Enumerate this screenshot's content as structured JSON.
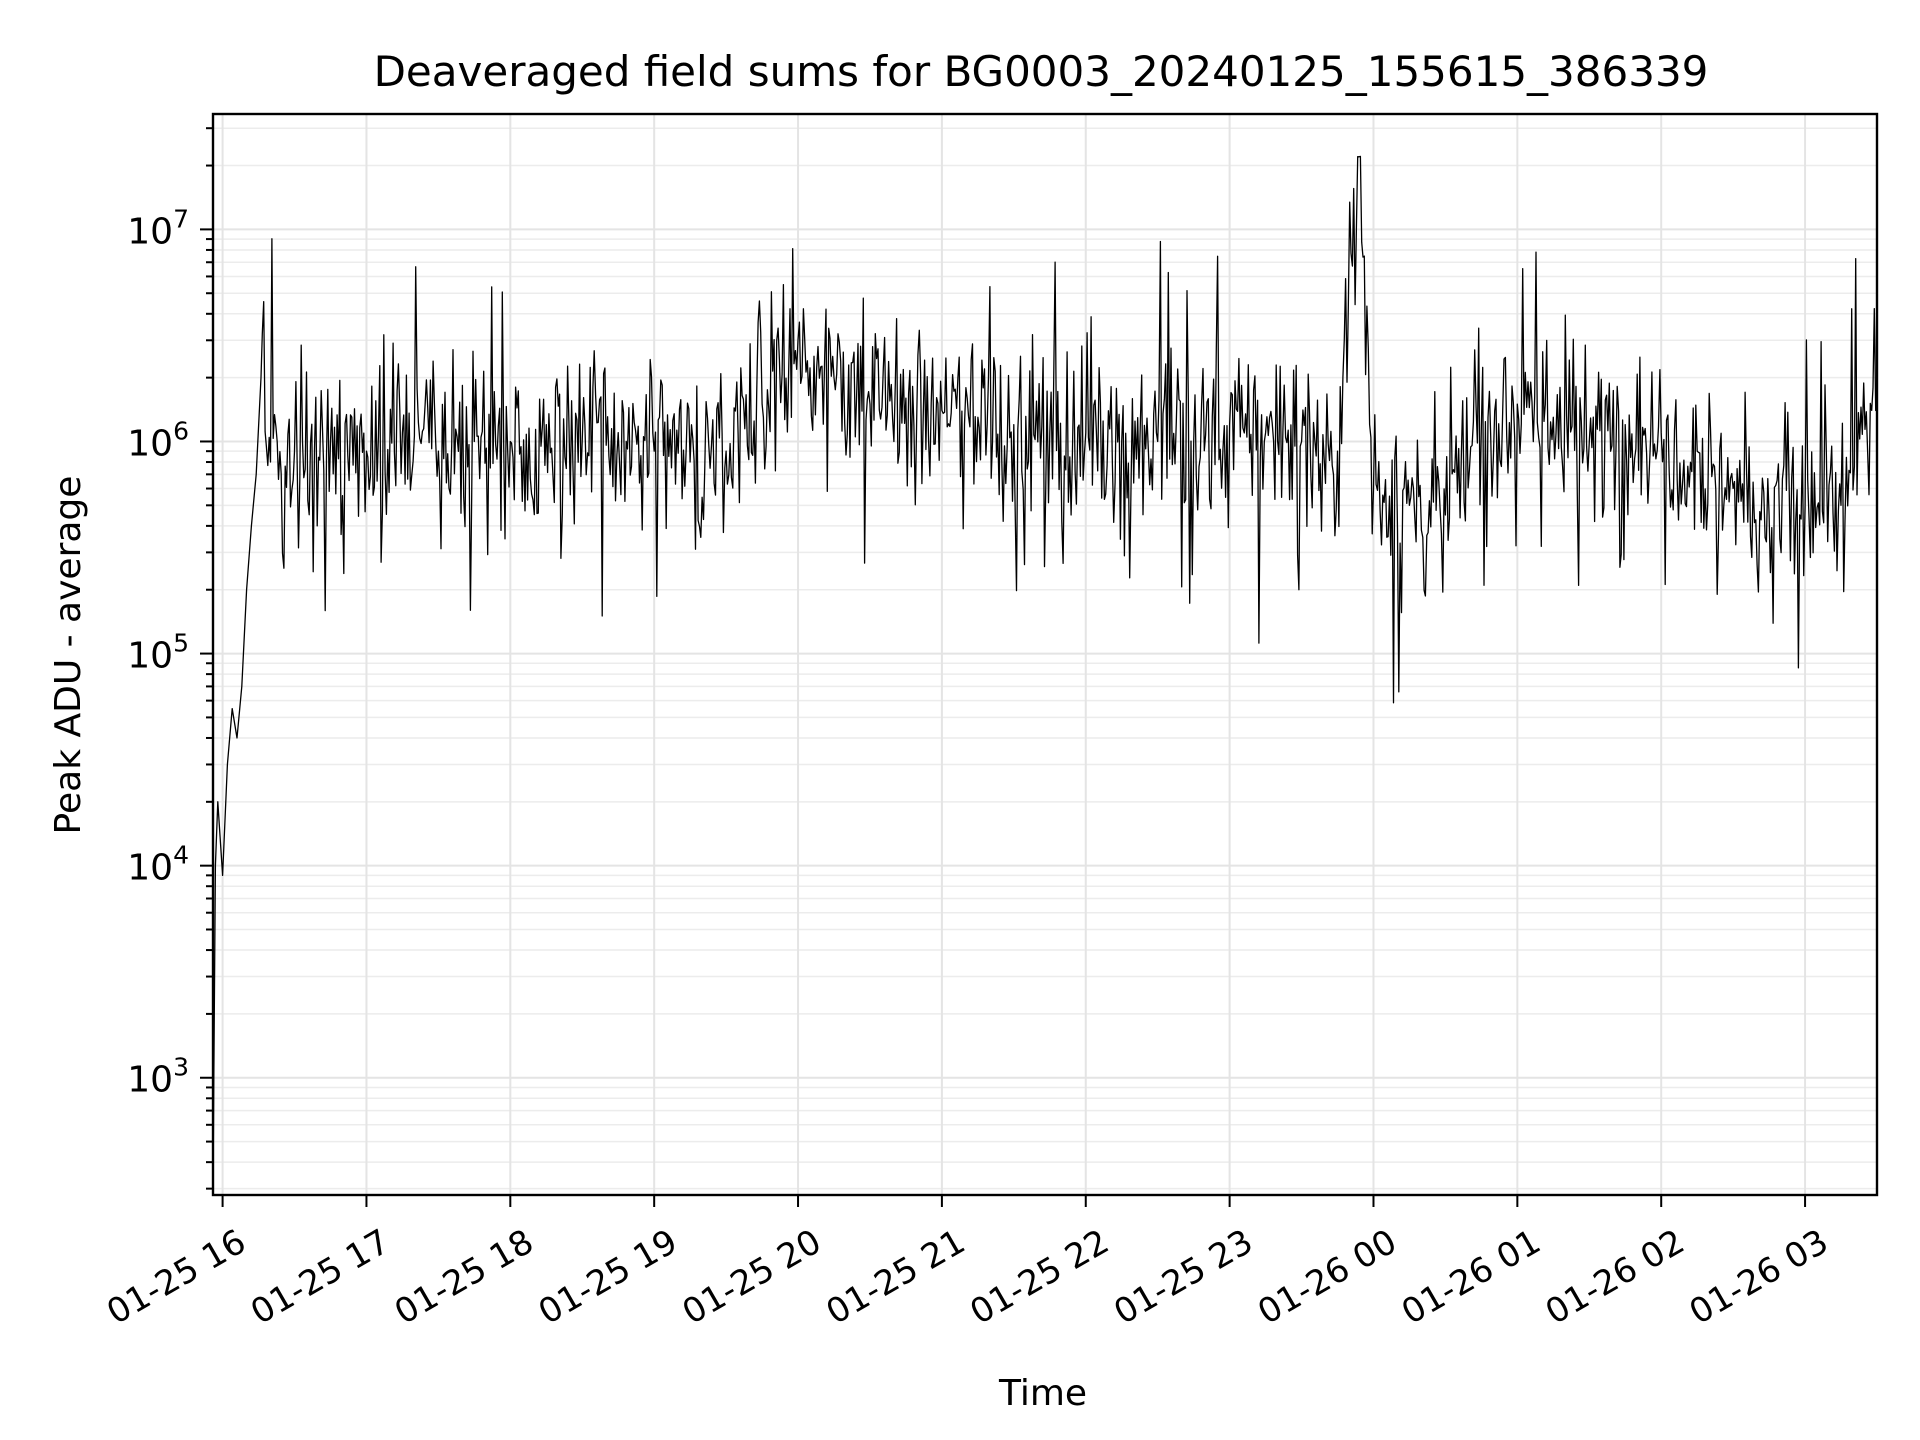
{
  "chart_data": {
    "type": "line",
    "title": "Deaveraged field sums for BG0003_20240125_155615_386339",
    "xlabel": "Time",
    "ylabel": "Peak ADU - average",
    "yscale": "log",
    "ylim": [
      280,
      35000000
    ],
    "xlim": [
      "2024-01-25 15:56",
      "2024-01-26 03:30"
    ],
    "grid": true,
    "x_ticks": [
      {
        "value": "2024-01-25 16:00",
        "label": "01-25 16"
      },
      {
        "value": "2024-01-25 17:00",
        "label": "01-25 17"
      },
      {
        "value": "2024-01-25 18:00",
        "label": "01-25 18"
      },
      {
        "value": "2024-01-25 19:00",
        "label": "01-25 19"
      },
      {
        "value": "2024-01-25 20:00",
        "label": "01-25 20"
      },
      {
        "value": "2024-01-25 21:00",
        "label": "01-25 21"
      },
      {
        "value": "2024-01-25 22:00",
        "label": "01-25 22"
      },
      {
        "value": "2024-01-25 23:00",
        "label": "01-25 23"
      },
      {
        "value": "2024-01-26 00:00",
        "label": "01-26 00"
      },
      {
        "value": "2024-01-26 01:00",
        "label": "01-26 01"
      },
      {
        "value": "2024-01-26 02:00",
        "label": "01-26 02"
      },
      {
        "value": "2024-01-26 03:00",
        "label": "01-26 03"
      }
    ],
    "y_ticks": [
      {
        "value": 1000,
        "base": "10",
        "exp": "3"
      },
      {
        "value": 10000,
        "base": "10",
        "exp": "4"
      },
      {
        "value": 100000,
        "base": "10",
        "exp": "5"
      },
      {
        "value": 1000000,
        "base": "10",
        "exp": "6"
      },
      {
        "value": 10000000,
        "base": "10",
        "exp": "7"
      }
    ],
    "series": [
      {
        "color": "#000000",
        "x": [
          "2024-01-25 15:56",
          "2024-01-25 15:57",
          "2024-01-25 15:58",
          "2024-01-25 16:00",
          "2024-01-25 16:02",
          "2024-01-25 16:04",
          "2024-01-25 16:06",
          "2024-01-25 16:08",
          "2024-01-25 16:10",
          "2024-01-25 16:12",
          "2024-01-25 16:14",
          "2024-01-25 16:16",
          "2024-01-25 16:20",
          "2024-01-25 16:30",
          "2024-01-25 16:45",
          "2024-01-25 17:00",
          "2024-01-25 17:15",
          "2024-01-25 17:30",
          "2024-01-25 17:45",
          "2024-01-25 18:00",
          "2024-01-25 18:15",
          "2024-01-25 18:30",
          "2024-01-25 18:45",
          "2024-01-25 19:00",
          "2024-01-25 19:15",
          "2024-01-25 19:30",
          "2024-01-25 19:45",
          "2024-01-25 20:00",
          "2024-01-25 20:15",
          "2024-01-25 20:30",
          "2024-01-25 20:45",
          "2024-01-25 21:00",
          "2024-01-25 21:15",
          "2024-01-25 21:30",
          "2024-01-25 21:45",
          "2024-01-25 22:00",
          "2024-01-25 22:15",
          "2024-01-25 22:30",
          "2024-01-25 22:45",
          "2024-01-25 23:00",
          "2024-01-25 23:15",
          "2024-01-25 23:30",
          "2024-01-25 23:45",
          "2024-01-25 23:54",
          "2024-01-26 00:00",
          "2024-01-26 00:15",
          "2024-01-26 00:30",
          "2024-01-26 00:45",
          "2024-01-26 01:00",
          "2024-01-26 01:15",
          "2024-01-26 01:30",
          "2024-01-26 01:45",
          "2024-01-26 02:00",
          "2024-01-26 02:15",
          "2024-01-26 02:30",
          "2024-01-26 02:45",
          "2024-01-26 03:00",
          "2024-01-26 03:15",
          "2024-01-26 03:30"
        ],
        "y": [
          300,
          10000,
          20000,
          9000,
          30000,
          55000,
          40000,
          70000,
          200000,
          400000,
          700000,
          2000000,
          800000,
          900000,
          1000000,
          900000,
          1100000,
          900000,
          1000000,
          1000000,
          1200000,
          1000000,
          1100000,
          900000,
          800000,
          900000,
          1500000,
          3000000,
          2000000,
          1500000,
          1600000,
          1400000,
          1300000,
          1200000,
          1100000,
          1100000,
          1000000,
          1000000,
          1000000,
          1200000,
          1100000,
          1000000,
          900000,
          22000000,
          600000,
          500000,
          450000,
          1200000,
          1500000,
          1300000,
          1000000,
          1200000,
          1100000,
          900000,
          600000,
          450000,
          500000,
          500000,
          1800000
        ]
      }
    ]
  }
}
